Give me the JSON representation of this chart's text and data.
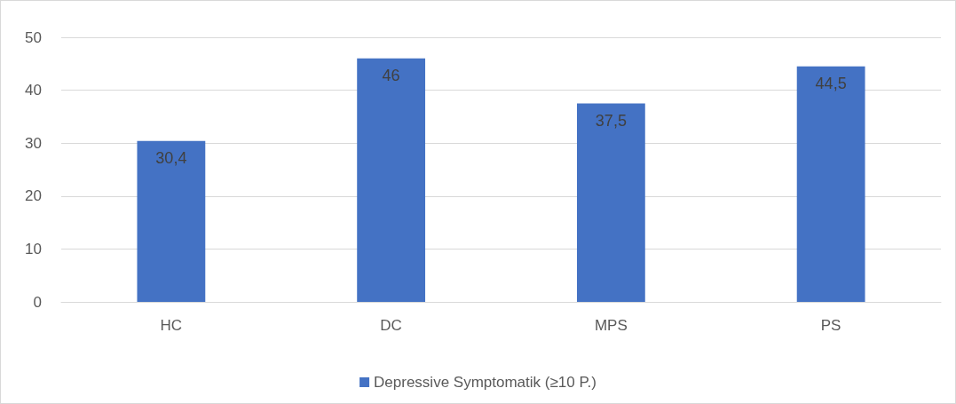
{
  "chart_data": {
    "type": "bar",
    "categories": [
      "HC",
      "DC",
      "MPS",
      "PS"
    ],
    "series": [
      {
        "name": "Depressive Symptomatik (≥10 P.)",
        "color": "#4472c4",
        "values": [
          30.4,
          46,
          37.5,
          44.5
        ],
        "value_labels": [
          "30,4",
          "46",
          "37,5",
          "44,5"
        ]
      }
    ],
    "ylim": [
      0,
      50
    ],
    "yticks": [
      0,
      10,
      20,
      30,
      40,
      50
    ],
    "grid": "y",
    "legend": "bottom"
  }
}
